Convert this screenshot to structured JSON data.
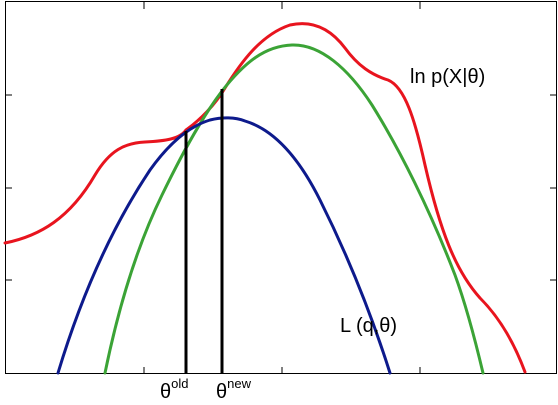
{
  "colors": {
    "log_likelihood": "#e8141e",
    "new_bound": "#3ba336",
    "old_bound": "#0d1a8c",
    "marker": "#000000",
    "axes": "#000000"
  },
  "labels": {
    "log_likelihood": "ln p(X|θ)",
    "lower_bound": "L (q,θ)",
    "theta_old_base": "θ",
    "theta_old_sup": "old",
    "theta_new_base": "θ",
    "theta_new_sup": "new"
  }
}
